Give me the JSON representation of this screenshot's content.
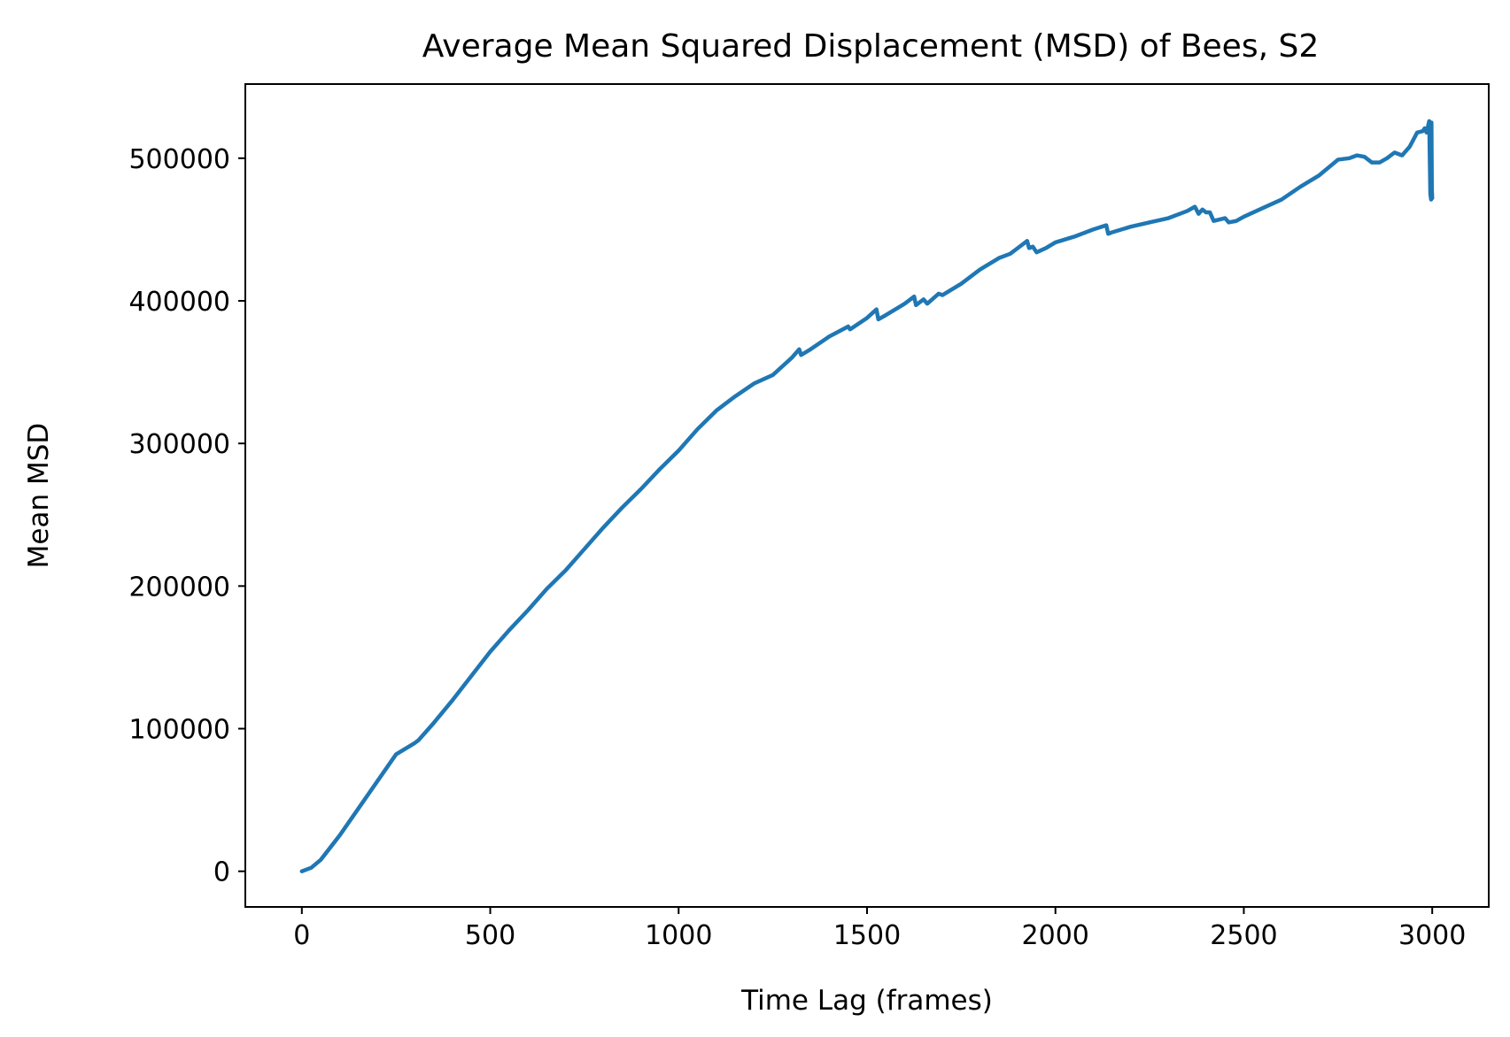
{
  "chart_data": {
    "type": "line",
    "title": "Average Mean Squared Displacement (MSD) of Bees, S2",
    "xlabel": "Time Lag (frames)",
    "ylabel": "Mean MSD",
    "xlim": [
      -150,
      3150
    ],
    "ylim": [
      -25000,
      552000
    ],
    "x_ticks": [
      0,
      500,
      1000,
      1500,
      2000,
      2500,
      3000
    ],
    "y_ticks": [
      0,
      100000,
      200000,
      300000,
      400000,
      500000
    ],
    "x_tick_labels": [
      "0",
      "500",
      "1000",
      "1500",
      "2000",
      "2500",
      "3000"
    ],
    "y_tick_labels": [
      "0",
      "100000",
      "200000",
      "300000",
      "400000",
      "500000"
    ],
    "grid": false,
    "series": [
      {
        "color": "#1f77b4",
        "points": [
          [
            0,
            0
          ],
          [
            25,
            2500
          ],
          [
            50,
            8000
          ],
          [
            100,
            25000
          ],
          [
            150,
            44000
          ],
          [
            200,
            63000
          ],
          [
            250,
            82000
          ],
          [
            300,
            90000
          ],
          [
            310,
            92000
          ],
          [
            350,
            104000
          ],
          [
            400,
            120000
          ],
          [
            450,
            137000
          ],
          [
            500,
            154000
          ],
          [
            550,
            169000
          ],
          [
            600,
            183000
          ],
          [
            650,
            198000
          ],
          [
            700,
            211000
          ],
          [
            750,
            226000
          ],
          [
            800,
            241000
          ],
          [
            850,
            255000
          ],
          [
            900,
            268000
          ],
          [
            950,
            282000
          ],
          [
            1000,
            295000
          ],
          [
            1050,
            310000
          ],
          [
            1100,
            323000
          ],
          [
            1150,
            333000
          ],
          [
            1200,
            342000
          ],
          [
            1250,
            348000
          ],
          [
            1300,
            360000
          ],
          [
            1320,
            366000
          ],
          [
            1325,
            362000
          ],
          [
            1350,
            366000
          ],
          [
            1400,
            375000
          ],
          [
            1450,
            382000
          ],
          [
            1455,
            380000
          ],
          [
            1500,
            388000
          ],
          [
            1525,
            394000
          ],
          [
            1530,
            387000
          ],
          [
            1550,
            390000
          ],
          [
            1600,
            398000
          ],
          [
            1625,
            403000
          ],
          [
            1630,
            397000
          ],
          [
            1650,
            401000
          ],
          [
            1660,
            398000
          ],
          [
            1690,
            405000
          ],
          [
            1700,
            404000
          ],
          [
            1750,
            412000
          ],
          [
            1800,
            422000
          ],
          [
            1850,
            430000
          ],
          [
            1880,
            433000
          ],
          [
            1900,
            437000
          ],
          [
            1925,
            442000
          ],
          [
            1930,
            437000
          ],
          [
            1940,
            438000
          ],
          [
            1950,
            434000
          ],
          [
            1975,
            437000
          ],
          [
            2000,
            441000
          ],
          [
            2050,
            445000
          ],
          [
            2100,
            450000
          ],
          [
            2135,
            453000
          ],
          [
            2140,
            447000
          ],
          [
            2150,
            448000
          ],
          [
            2200,
            452000
          ],
          [
            2250,
            455000
          ],
          [
            2300,
            458000
          ],
          [
            2350,
            463000
          ],
          [
            2370,
            466000
          ],
          [
            2380,
            461000
          ],
          [
            2390,
            464000
          ],
          [
            2400,
            462000
          ],
          [
            2410,
            462000
          ],
          [
            2420,
            456000
          ],
          [
            2450,
            458000
          ],
          [
            2460,
            455000
          ],
          [
            2480,
            456000
          ],
          [
            2500,
            459000
          ],
          [
            2550,
            465000
          ],
          [
            2600,
            471000
          ],
          [
            2650,
            480000
          ],
          [
            2700,
            488000
          ],
          [
            2750,
            499000
          ],
          [
            2780,
            500000
          ],
          [
            2800,
            502000
          ],
          [
            2820,
            501000
          ],
          [
            2840,
            497000
          ],
          [
            2860,
            497000
          ],
          [
            2880,
            500000
          ],
          [
            2900,
            504000
          ],
          [
            2920,
            502000
          ],
          [
            2940,
            508000
          ],
          [
            2960,
            518000
          ],
          [
            2975,
            519000
          ],
          [
            2980,
            521000
          ],
          [
            2985,
            518000
          ],
          [
            2992,
            526000
          ],
          [
            2995,
            475000
          ],
          [
            2997,
            471000
          ],
          [
            2998,
            525000
          ],
          [
            2999,
            478000
          ],
          [
            3000,
            472000
          ]
        ]
      }
    ]
  }
}
